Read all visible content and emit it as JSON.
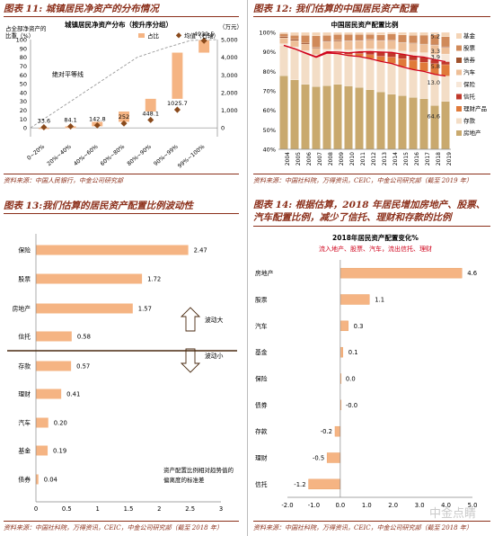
{
  "panels": {
    "p11": {
      "title": "图表 11: 城镇居民净资产的分布情况",
      "source": "资料来源：中国人民银行，中金公司研究部"
    },
    "p12": {
      "title": "图表 12: 我们估算的中国居民资产配置",
      "source": "资料来源：中国社科院，万得资讯，CEIC，中金公司研究部（截至 2019 年）"
    },
    "p13": {
      "title": "图表 13:我们估算的居民资产配置比例波动性",
      "source": "资料来源：中国社科院，万得资讯，CEIC，中金公司研究部（截至 2018 年）"
    },
    "p14": {
      "title": "图表 14: 根据估算，2018 年居民增加房地产、股票、汽车配置比例，减少了信托、理财和存款的比例",
      "source": "资料来源：中国社科院，万得资讯，CEIC，中金公司研究部（截至 2018 年）"
    }
  },
  "watermark": "中金点睛",
  "chart_data": [
    {
      "type": "bar",
      "title": "城镇居民净资产分布（按升序分组）",
      "ylabel_left": "占全部净资产的比重（%）",
      "ylabel_right": "（万元）",
      "categories": [
        "0~20%",
        "20%~40%",
        "40%~60%",
        "60%~80%",
        "80%~90%",
        "90%~99%",
        "99%~100%"
      ],
      "series": [
        {
          "name": "占比",
          "color": "#f5b483",
          "values": [
            -0.2,
            2.0,
            5.0,
            11.7,
            14.4,
            52.3,
            14.1
          ]
        },
        {
          "name": "均值（右轴）",
          "color": "#8a4a1c",
          "values": [
            33.6,
            84.1,
            142.8,
            252.0,
            448.1,
            1025.7,
            4939.5
          ]
        }
      ],
      "labels": [
        "33.6",
        "84.1",
        "142.8",
        "252",
        "448.1",
        "1025.7",
        "4939.5"
      ],
      "annotation": "绝对平等线",
      "ylim_left": [
        -10,
        100
      ],
      "ylim_right": [
        0,
        5000
      ],
      "yticks_left": [
        "0",
        "10",
        "20",
        "30",
        "40",
        "50",
        "60",
        "70",
        "80",
        "90",
        "100"
      ],
      "yticks_right": [
        "0",
        "1,000",
        "2,000",
        "3,000",
        "4,000",
        "5,000"
      ]
    },
    {
      "type": "area",
      "title": "中国居民资产配置比例",
      "categories": [
        "2004",
        "2005",
        "2006",
        "2007",
        "2008",
        "2009",
        "2010",
        "2011",
        "2012",
        "2013",
        "2014",
        "2015",
        "2016",
        "2017",
        "2018",
        "2019"
      ],
      "legend": [
        "基金",
        "股票",
        "债券",
        "汽车",
        "保险",
        "信托",
        "理财产品",
        "存款",
        "房地产"
      ],
      "series": [
        {
          "name": "房地产",
          "color": "#c9a96e",
          "values": [
            77.8,
            75.6,
            73.3,
            72.2,
            72.6,
            73.3,
            72.5,
            71.8,
            70.6,
            69.5,
            68.3,
            67.5,
            66.6,
            66.0,
            62.5,
            64.6
          ]
        },
        {
          "name": "存款",
          "color": "#f3ddc6",
          "values": [
            15.5,
            16.0,
            16.0,
            15.0,
            16.8,
            15.8,
            15.6,
            15.8,
            15.9,
            15.6,
            15.7,
            14.8,
            14.3,
            14.0,
            16.0,
            13.0
          ]
        },
        {
          "name": "理财产品",
          "color": "#e07a3a",
          "values": [
            0.0,
            0.0,
            0.1,
            0.2,
            0.4,
            0.5,
            0.8,
            1.5,
            2.0,
            2.6,
            3.3,
            4.2,
            4.8,
            4.7,
            5.4,
            5.8
          ]
        },
        {
          "name": "信托",
          "color": "#c0392b",
          "values": [
            0.0,
            0.0,
            0.1,
            0.1,
            0.2,
            0.3,
            0.6,
            0.9,
            1.6,
            2.2,
            2.4,
            2.3,
            2.1,
            2.6,
            2.1,
            1.6
          ]
        },
        {
          "name": "保险",
          "color": "#f7e7d8",
          "values": [
            0.9,
            1.0,
            1.1,
            1.0,
            1.3,
            1.4,
            1.5,
            1.4,
            1.5,
            1.5,
            1.6,
            1.6,
            2.1,
            2.3,
            2.7,
            3.9
          ]
        },
        {
          "name": "汽车",
          "color": "#eebf98",
          "values": [
            3.0,
            3.2,
            3.4,
            3.4,
            4.0,
            4.2,
            4.5,
            4.4,
            4.5,
            4.4,
            4.4,
            4.3,
            4.4,
            4.2,
            4.8,
            3.3
          ]
        },
        {
          "name": "债券",
          "color": "#a0522d",
          "values": [
            0.6,
            0.6,
            0.5,
            0.4,
            0.4,
            0.4,
            0.3,
            0.3,
            0.3,
            0.3,
            0.3,
            0.2,
            0.2,
            0.2,
            0.3,
            0.4
          ]
        },
        {
          "name": "股票",
          "color": "#d08a5a",
          "values": [
            1.5,
            2.1,
            4.0,
            6.0,
            2.8,
            3.0,
            3.2,
            2.8,
            2.6,
            2.6,
            3.2,
            3.8,
            4.0,
            4.6,
            4.9,
            5.2
          ]
        },
        {
          "name": "基金",
          "color": "#f4d4b6",
          "values": [
            0.7,
            1.5,
            1.5,
            1.7,
            1.5,
            1.1,
            1.0,
            1.1,
            1.0,
            1.3,
            0.8,
            1.3,
            1.5,
            1.4,
            1.3,
            2.2
          ]
        }
      ],
      "point_labels": [
        "5.2",
        "3.3",
        "3.9",
        "5.8",
        "13.0",
        "64.6"
      ],
      "yticks": [
        "40%",
        "50%",
        "60%",
        "70%",
        "80%",
        "90%",
        "100%"
      ],
      "ylim": [
        40,
        100
      ]
    },
    {
      "type": "bar",
      "orientation": "horizontal",
      "categories": [
        "保险",
        "股票",
        "房地产",
        "信托",
        "存款",
        "理财",
        "汽车",
        "基金",
        "债券"
      ],
      "values": [
        2.47,
        1.72,
        1.57,
        0.58,
        0.57,
        0.41,
        0.2,
        0.19,
        0.04
      ],
      "labels": [
        "2.47",
        "1.72",
        "1.57",
        "0.58",
        "0.57",
        "0.41",
        "0.20",
        "0.19",
        "0.04"
      ],
      "annotations": {
        "up": "波动大",
        "down": "波动小",
        "note": "资产配置比例相对趋势值的偏离度的标准差"
      },
      "xlim": [
        0,
        3
      ],
      "xticks": [
        "0",
        "0.5",
        "1",
        "1.5",
        "2",
        "2.5",
        "3"
      ]
    },
    {
      "type": "bar",
      "orientation": "horizontal",
      "title": "2018年居民资产配置变化%",
      "subtitle": "流入地产、股票、汽车，流出信托、理财",
      "categories": [
        "房地产",
        "股票",
        "汽车",
        "基金",
        "保险",
        "债券",
        "存款",
        "理财",
        "信托"
      ],
      "values": [
        4.6,
        1.1,
        0.3,
        0.1,
        0.0,
        -0.0,
        -0.2,
        -0.5,
        -1.2
      ],
      "labels": [
        "4.6",
        "1.1",
        "0.3",
        "0.1",
        "0.0",
        "-0.0",
        "-0.2",
        "-0.5",
        "-1.2"
      ],
      "xlim": [
        -2,
        5
      ],
      "xticks": [
        "-2.0",
        "-1.0",
        "0.0",
        "1.0",
        "2.0",
        "3.0",
        "4.0",
        "5.0"
      ]
    }
  ]
}
